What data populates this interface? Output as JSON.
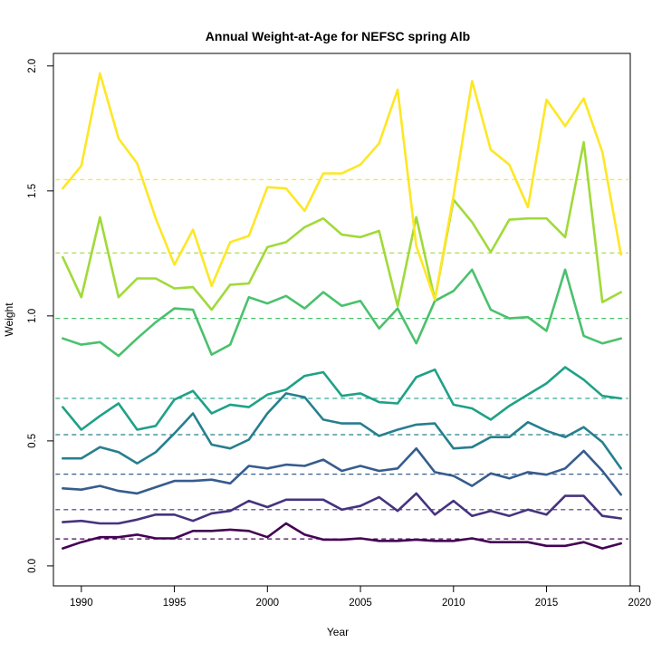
{
  "chart_data": {
    "type": "line",
    "title": "Annual Weight-at-Age for NEFSC spring Alb",
    "xlabel": "Year",
    "ylabel": "Weight",
    "xlim": [
      1988.5,
      2019.5
    ],
    "ylim": [
      -0.08,
      2.05
    ],
    "xticks": [
      1990,
      1995,
      2000,
      2005,
      2010,
      2015,
      2020
    ],
    "yticks": [
      0.0,
      0.5,
      1.0,
      1.5,
      2.0
    ],
    "ytick_labels": [
      "0.0",
      "0.5",
      "1.0",
      "1.5",
      "2.0"
    ],
    "grid": false,
    "legend": "none",
    "x": [
      1989,
      1990,
      1991,
      1992,
      1993,
      1994,
      1995,
      1996,
      1997,
      1998,
      1999,
      2000,
      2001,
      2002,
      2003,
      2004,
      2005,
      2006,
      2007,
      2008,
      2009,
      2010,
      2011,
      2012,
      2013,
      2014,
      2015,
      2016,
      2017,
      2018,
      2019
    ],
    "series": [
      {
        "color": "#440154",
        "mean": 0.108,
        "values": [
          0.07,
          0.095,
          0.115,
          0.115,
          0.125,
          0.11,
          0.11,
          0.14,
          0.14,
          0.145,
          0.14,
          0.115,
          0.17,
          0.125,
          0.105,
          0.105,
          0.11,
          0.1,
          0.1,
          0.105,
          0.1,
          0.1,
          0.11,
          0.095,
          0.095,
          0.095,
          0.08,
          0.08,
          0.095,
          0.07,
          0.09
        ]
      },
      {
        "color": "#46337E",
        "mean": 0.225,
        "values": [
          0.175,
          0.18,
          0.17,
          0.17,
          0.185,
          0.205,
          0.205,
          0.18,
          0.21,
          0.22,
          0.26,
          0.235,
          0.265,
          0.265,
          0.265,
          0.225,
          0.24,
          0.275,
          0.22,
          0.29,
          0.205,
          0.26,
          0.2,
          0.22,
          0.2,
          0.225,
          0.205,
          0.28,
          0.28,
          0.2,
          0.19
        ]
      },
      {
        "color": "#365C8D",
        "mean": 0.367,
        "values": [
          0.31,
          0.305,
          0.32,
          0.3,
          0.29,
          0.315,
          0.34,
          0.34,
          0.345,
          0.33,
          0.4,
          0.39,
          0.405,
          0.4,
          0.425,
          0.38,
          0.4,
          0.38,
          0.39,
          0.47,
          0.375,
          0.36,
          0.32,
          0.37,
          0.35,
          0.375,
          0.365,
          0.39,
          0.46,
          0.38,
          0.285
        ]
      },
      {
        "color": "#277F8E",
        "mean": 0.525,
        "values": [
          0.43,
          0.43,
          0.475,
          0.455,
          0.41,
          0.455,
          0.53,
          0.61,
          0.485,
          0.47,
          0.505,
          0.61,
          0.69,
          0.675,
          0.585,
          0.57,
          0.57,
          0.52,
          0.545,
          0.565,
          0.57,
          0.47,
          0.475,
          0.515,
          0.515,
          0.575,
          0.54,
          0.515,
          0.555,
          0.495,
          0.39
        ]
      },
      {
        "color": "#1FA187",
        "mean": 0.67,
        "values": [
          0.635,
          0.545,
          0.6,
          0.65,
          0.545,
          0.56,
          0.665,
          0.7,
          0.61,
          0.645,
          0.635,
          0.685,
          0.705,
          0.76,
          0.775,
          0.68,
          0.69,
          0.655,
          0.65,
          0.755,
          0.785,
          0.645,
          0.63,
          0.585,
          0.64,
          0.685,
          0.73,
          0.795,
          0.745,
          0.68,
          0.67
        ]
      },
      {
        "color": "#4AC16D",
        "mean": 0.99,
        "values": [
          0.91,
          0.885,
          0.895,
          0.84,
          0.91,
          0.975,
          1.03,
          1.025,
          0.845,
          0.885,
          1.075,
          1.05,
          1.08,
          1.03,
          1.095,
          1.04,
          1.06,
          0.95,
          1.03,
          0.89,
          1.06,
          1.1,
          1.185,
          1.025,
          0.99,
          0.995,
          0.94,
          1.185,
          0.92,
          0.89,
          0.91
        ]
      },
      {
        "color": "#A0DA39",
        "mean": 1.252,
        "values": [
          1.235,
          1.075,
          1.395,
          1.075,
          1.15,
          1.15,
          1.11,
          1.115,
          1.025,
          1.125,
          1.13,
          1.275,
          1.295,
          1.355,
          1.39,
          1.325,
          1.315,
          1.34,
          1.04,
          1.395,
          1.065,
          1.465,
          1.375,
          1.255,
          1.385,
          1.39,
          1.39,
          1.315,
          1.695,
          1.055,
          1.095
        ]
      },
      {
        "color": "#FDE725",
        "mean": 1.545,
        "values": [
          1.51,
          1.6,
          1.97,
          1.71,
          1.61,
          1.39,
          1.205,
          1.345,
          1.12,
          1.295,
          1.32,
          1.515,
          1.51,
          1.42,
          1.57,
          1.57,
          1.605,
          1.69,
          1.905,
          1.28,
          1.065,
          1.48,
          1.94,
          1.665,
          1.605,
          1.435,
          1.865,
          1.76,
          1.87,
          1.655,
          1.245
        ]
      }
    ]
  }
}
